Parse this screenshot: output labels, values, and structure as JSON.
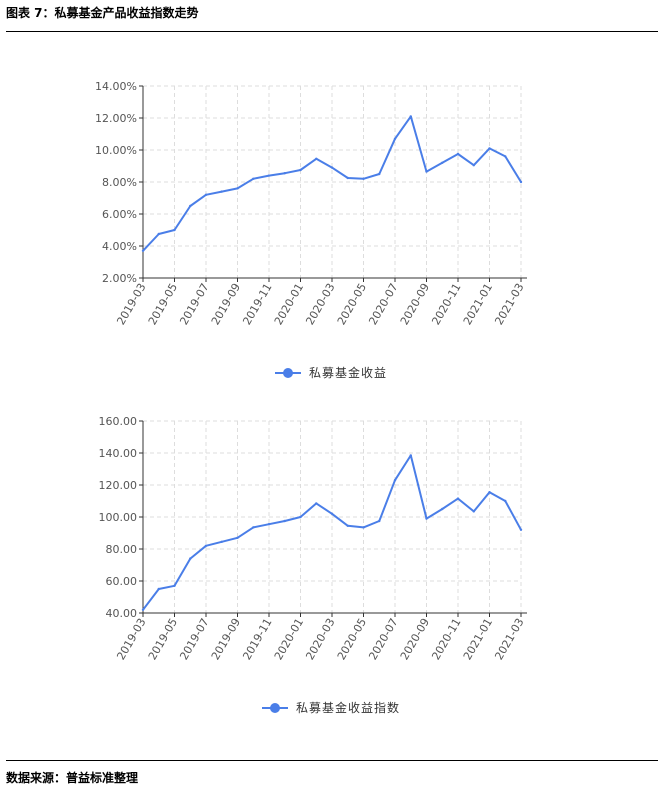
{
  "header": {
    "title": "图表 7：私募基金产品收益指数走势"
  },
  "footer": {
    "source": "数据来源：普益标准整理"
  },
  "colors": {
    "series": "#4a7ee8",
    "axis": "#333333",
    "grid": "#dddddd",
    "text": "#555555"
  },
  "chart_data": [
    {
      "type": "line",
      "title": "",
      "xlabel": "",
      "ylabel": "",
      "legend_position": "bottom-center",
      "grid": true,
      "x": [
        "2019-03",
        "2019-04",
        "2019-05",
        "2019-06",
        "2019-07",
        "2019-08",
        "2019-09",
        "2019-10",
        "2019-11",
        "2019-12",
        "2020-01",
        "2020-02",
        "2020-03",
        "2020-04",
        "2020-05",
        "2020-06",
        "2020-07",
        "2020-08",
        "2020-09",
        "2020-10",
        "2020-11",
        "2020-12",
        "2021-01",
        "2021-02",
        "2021-03"
      ],
      "x_tick_labels": [
        "2019-03",
        "2019-05",
        "2019-07",
        "2019-09",
        "2019-11",
        "2020-01",
        "2020-03",
        "2020-05",
        "2020-07",
        "2020-09",
        "2020-11",
        "2021-01",
        "2021-03"
      ],
      "y_ticks": [
        "2.00%",
        "4.00%",
        "6.00%",
        "8.00%",
        "10.00%",
        "12.00%",
        "14.00%"
      ],
      "ylim": [
        2,
        14
      ],
      "y_unit": "%",
      "series": [
        {
          "name": "私募基金收益",
          "values": [
            3.7,
            4.75,
            5.0,
            6.5,
            7.2,
            7.4,
            7.6,
            8.2,
            8.4,
            8.55,
            8.75,
            9.45,
            8.9,
            8.25,
            8.2,
            8.5,
            10.7,
            12.1,
            8.65,
            9.2,
            9.75,
            9.05,
            10.1,
            9.6,
            8.0
          ]
        }
      ]
    },
    {
      "type": "line",
      "title": "",
      "xlabel": "",
      "ylabel": "",
      "legend_position": "bottom-center",
      "grid": true,
      "x": [
        "2019-03",
        "2019-04",
        "2019-05",
        "2019-06",
        "2019-07",
        "2019-08",
        "2019-09",
        "2019-10",
        "2019-11",
        "2019-12",
        "2020-01",
        "2020-02",
        "2020-03",
        "2020-04",
        "2020-05",
        "2020-06",
        "2020-07",
        "2020-08",
        "2020-09",
        "2020-10",
        "2020-11",
        "2020-12",
        "2021-01",
        "2021-02",
        "2021-03"
      ],
      "x_tick_labels": [
        "2019-03",
        "2019-05",
        "2019-07",
        "2019-09",
        "2019-11",
        "2020-01",
        "2020-03",
        "2020-05",
        "2020-07",
        "2020-09",
        "2020-11",
        "2021-01",
        "2021-03"
      ],
      "y_ticks": [
        "40.00",
        "60.00",
        "80.00",
        "100.00",
        "120.00",
        "140.00",
        "160.00"
      ],
      "ylim": [
        40,
        160
      ],
      "series": [
        {
          "name": "私募基金收益指数",
          "values": [
            42,
            55,
            57,
            74,
            82,
            84.5,
            87,
            93.5,
            95.5,
            97.5,
            100,
            108.5,
            102,
            94.5,
            93.5,
            97.5,
            123,
            138.5,
            99,
            105,
            111.5,
            103.5,
            115.5,
            110,
            92
          ]
        }
      ]
    }
  ]
}
